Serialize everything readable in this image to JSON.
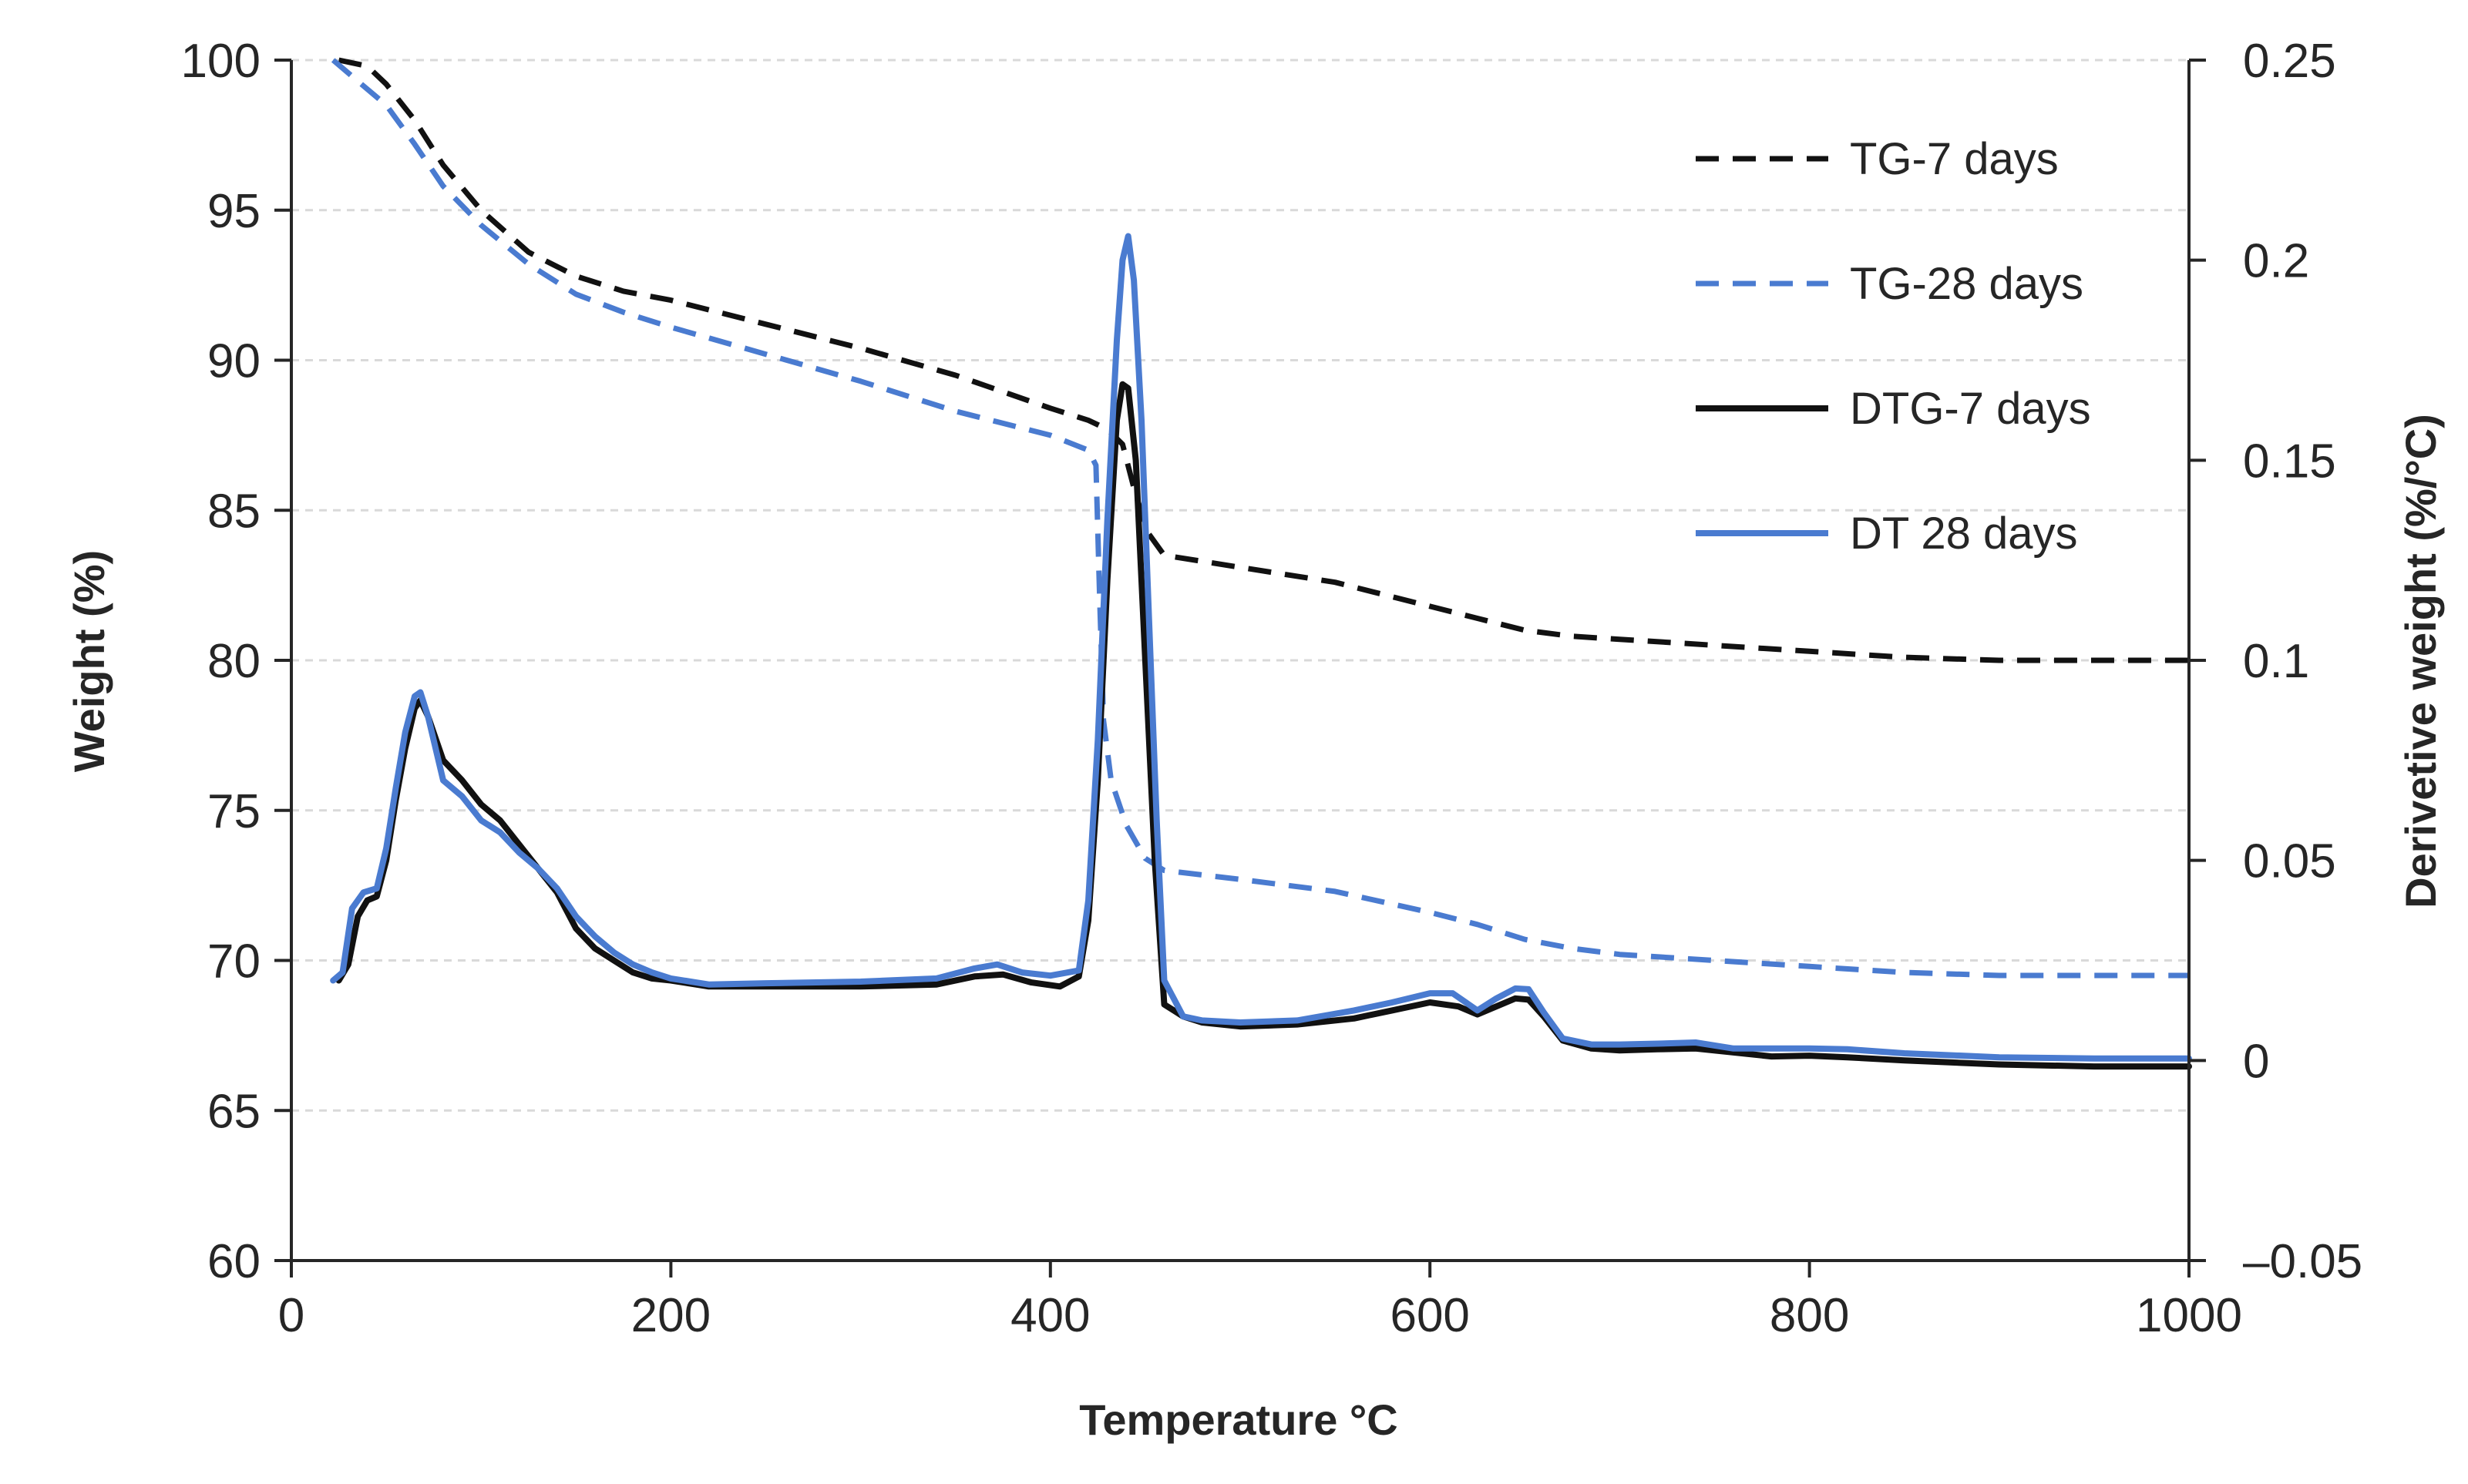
{
  "chart_data": {
    "type": "line",
    "title": "",
    "xlabel": "Temperature °C",
    "ylabel_left": "Weight (%)",
    "ylabel_right": "Derivetive weight (%/°C)",
    "xlim": [
      0,
      1000
    ],
    "ylim_left": [
      60,
      100
    ],
    "ylim_right": [
      -0.05,
      0.25
    ],
    "x_ticks": [
      "0",
      "200",
      "400",
      "600",
      "800",
      "1000"
    ],
    "y_left_ticks": [
      "60",
      "65",
      "70",
      "75",
      "80",
      "85",
      "90",
      "95",
      "100"
    ],
    "y_right_ticks": [
      "–0.05",
      "0",
      "0.05",
      "0.1",
      "0.15",
      "0.2",
      "0.25"
    ],
    "grid": "horizontal dashed",
    "legend_position": "top-right",
    "colors": {
      "black": "#111111",
      "blue": "#4a7bd0",
      "axis": "#262626",
      "grid": "#d9d9d9"
    },
    "series": [
      {
        "name": "TG-7 days",
        "axis": "left",
        "style": "dashed",
        "color": "#111111",
        "points": [
          [
            25,
            100
          ],
          [
            40,
            99.8
          ],
          [
            50,
            99.2
          ],
          [
            65,
            98
          ],
          [
            80,
            96.5
          ],
          [
            100,
            95
          ],
          [
            125,
            93.6
          ],
          [
            150,
            92.8
          ],
          [
            175,
            92.3
          ],
          [
            200,
            92
          ],
          [
            250,
            91.2
          ],
          [
            300,
            90.4
          ],
          [
            350,
            89.5
          ],
          [
            400,
            88.4
          ],
          [
            420,
            88
          ],
          [
            430,
            87.7
          ],
          [
            438,
            87.2
          ],
          [
            445,
            85.5
          ],
          [
            452,
            84.2
          ],
          [
            460,
            83.5
          ],
          [
            480,
            83.3
          ],
          [
            500,
            83.1
          ],
          [
            550,
            82.6
          ],
          [
            600,
            81.8
          ],
          [
            625,
            81.4
          ],
          [
            650,
            81
          ],
          [
            675,
            80.8
          ],
          [
            700,
            80.7
          ],
          [
            750,
            80.5
          ],
          [
            800,
            80.3
          ],
          [
            850,
            80.1
          ],
          [
            900,
            80
          ],
          [
            950,
            80
          ],
          [
            1000,
            80
          ]
        ]
      },
      {
        "name": "TG-28 days",
        "axis": "left",
        "style": "dashed",
        "color": "#4a7bd0",
        "points": [
          [
            22,
            100
          ],
          [
            35,
            99.3
          ],
          [
            50,
            98.5
          ],
          [
            65,
            97.2
          ],
          [
            80,
            95.8
          ],
          [
            100,
            94.5
          ],
          [
            125,
            93.2
          ],
          [
            150,
            92.2
          ],
          [
            175,
            91.6
          ],
          [
            200,
            91.1
          ],
          [
            250,
            90.2
          ],
          [
            300,
            89.3
          ],
          [
            350,
            88.3
          ],
          [
            400,
            87.5
          ],
          [
            420,
            87
          ],
          [
            424,
            86.5
          ],
          [
            426,
            82
          ],
          [
            428,
            78
          ],
          [
            432,
            76
          ],
          [
            440,
            74.5
          ],
          [
            450,
            73.4
          ],
          [
            460,
            73
          ],
          [
            500,
            72.7
          ],
          [
            550,
            72.3
          ],
          [
            600,
            71.6
          ],
          [
            625,
            71.2
          ],
          [
            650,
            70.7
          ],
          [
            675,
            70.4
          ],
          [
            700,
            70.2
          ],
          [
            750,
            70
          ],
          [
            800,
            69.8
          ],
          [
            850,
            69.6
          ],
          [
            900,
            69.5
          ],
          [
            1000,
            69.5
          ]
        ]
      },
      {
        "name": "DTG-7 days",
        "axis": "right",
        "style": "solid",
        "color": "#111111",
        "points": [
          [
            25,
            0.02
          ],
          [
            30,
            0.024
          ],
          [
            35,
            0.036
          ],
          [
            40,
            0.04
          ],
          [
            45,
            0.041
          ],
          [
            50,
            0.05
          ],
          [
            55,
            0.065
          ],
          [
            60,
            0.078
          ],
          [
            65,
            0.088
          ],
          [
            68,
            0.09
          ],
          [
            72,
            0.086
          ],
          [
            80,
            0.075
          ],
          [
            90,
            0.07
          ],
          [
            100,
            0.064
          ],
          [
            110,
            0.06
          ],
          [
            120,
            0.054
          ],
          [
            130,
            0.048
          ],
          [
            140,
            0.042
          ],
          [
            150,
            0.033
          ],
          [
            160,
            0.028
          ],
          [
            170,
            0.025
          ],
          [
            180,
            0.022
          ],
          [
            190,
            0.0205
          ],
          [
            200,
            0.02
          ],
          [
            220,
            0.0185
          ],
          [
            250,
            0.0185
          ],
          [
            300,
            0.0185
          ],
          [
            340,
            0.019
          ],
          [
            360,
            0.021
          ],
          [
            375,
            0.0215
          ],
          [
            390,
            0.0195
          ],
          [
            405,
            0.0185
          ],
          [
            415,
            0.021
          ],
          [
            420,
            0.035
          ],
          [
            425,
            0.07
          ],
          [
            430,
            0.12
          ],
          [
            435,
            0.16
          ],
          [
            438,
            0.169
          ],
          [
            441,
            0.168
          ],
          [
            445,
            0.15
          ],
          [
            450,
            0.1
          ],
          [
            455,
            0.05
          ],
          [
            460,
            0.014
          ],
          [
            470,
            0.011
          ],
          [
            480,
            0.0095
          ],
          [
            500,
            0.0085
          ],
          [
            530,
            0.009
          ],
          [
            560,
            0.0105
          ],
          [
            580,
            0.0125
          ],
          [
            600,
            0.0145
          ],
          [
            615,
            0.0135
          ],
          [
            625,
            0.0115
          ],
          [
            635,
            0.0135
          ],
          [
            645,
            0.0155
          ],
          [
            652,
            0.0152
          ],
          [
            660,
            0.011
          ],
          [
            670,
            0.005
          ],
          [
            685,
            0.003
          ],
          [
            700,
            0.0025
          ],
          [
            720,
            0.0028
          ],
          [
            740,
            0.003
          ],
          [
            760,
            0.002
          ],
          [
            780,
            0.001
          ],
          [
            800,
            0.0012
          ],
          [
            820,
            0.0008
          ],
          [
            850,
            0
          ],
          [
            900,
            -0.001
          ],
          [
            950,
            -0.0015
          ],
          [
            1000,
            -0.0015
          ]
        ]
      },
      {
        "name": "DT 28 days",
        "axis": "right",
        "style": "solid",
        "color": "#4a7bd0",
        "points": [
          [
            22,
            0.02
          ],
          [
            27,
            0.022
          ],
          [
            32,
            0.038
          ],
          [
            38,
            0.042
          ],
          [
            45,
            0.043
          ],
          [
            50,
            0.053
          ],
          [
            55,
            0.068
          ],
          [
            60,
            0.082
          ],
          [
            65,
            0.091
          ],
          [
            68,
            0.092
          ],
          [
            72,
            0.086
          ],
          [
            80,
            0.07
          ],
          [
            90,
            0.066
          ],
          [
            100,
            0.06
          ],
          [
            110,
            0.057
          ],
          [
            120,
            0.052
          ],
          [
            130,
            0.048
          ],
          [
            140,
            0.043
          ],
          [
            150,
            0.036
          ],
          [
            160,
            0.031
          ],
          [
            170,
            0.027
          ],
          [
            180,
            0.024
          ],
          [
            190,
            0.022
          ],
          [
            200,
            0.0205
          ],
          [
            220,
            0.019
          ],
          [
            250,
            0.0193
          ],
          [
            300,
            0.0197
          ],
          [
            340,
            0.0205
          ],
          [
            360,
            0.023
          ],
          [
            372,
            0.024
          ],
          [
            385,
            0.022
          ],
          [
            400,
            0.0212
          ],
          [
            415,
            0.0225
          ],
          [
            420,
            0.04
          ],
          [
            425,
            0.08
          ],
          [
            430,
            0.135
          ],
          [
            435,
            0.18
          ],
          [
            438,
            0.2
          ],
          [
            441,
            0.206
          ],
          [
            444,
            0.195
          ],
          [
            448,
            0.16
          ],
          [
            452,
            0.11
          ],
          [
            456,
            0.06
          ],
          [
            460,
            0.02
          ],
          [
            470,
            0.011
          ],
          [
            480,
            0.01
          ],
          [
            500,
            0.0095
          ],
          [
            530,
            0.01
          ],
          [
            560,
            0.0125
          ],
          [
            580,
            0.0145
          ],
          [
            600,
            0.0168
          ],
          [
            612,
            0.0168
          ],
          [
            625,
            0.0125
          ],
          [
            635,
            0.0155
          ],
          [
            645,
            0.018
          ],
          [
            652,
            0.0178
          ],
          [
            660,
            0.012
          ],
          [
            670,
            0.0055
          ],
          [
            685,
            0.004
          ],
          [
            700,
            0.004
          ],
          [
            720,
            0.0042
          ],
          [
            740,
            0.0045
          ],
          [
            760,
            0.003
          ],
          [
            780,
            0.003
          ],
          [
            800,
            0.003
          ],
          [
            820,
            0.0028
          ],
          [
            850,
            0.0018
          ],
          [
            900,
            0.0008
          ],
          [
            950,
            0.0005
          ],
          [
            1000,
            0.0005
          ]
        ]
      }
    ]
  }
}
